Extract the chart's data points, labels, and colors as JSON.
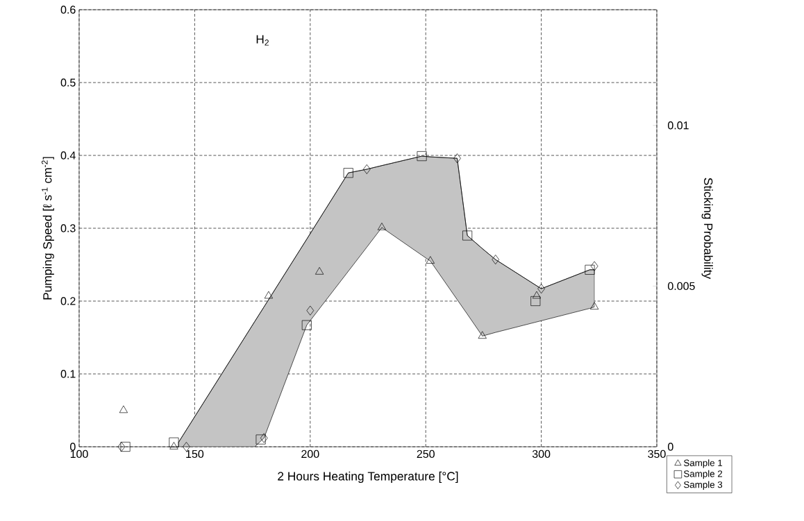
{
  "chart_data": {
    "type": "scatter",
    "xlabel": "2 Hours Heating Temperature [°C]",
    "ylabel": "Pumping Speed [ℓ s$^{-1}$ cm$^{-2}$]",
    "y2label": "Sticking Probability",
    "annotations": [
      "H$_{2}$"
    ],
    "xlim": [
      100,
      350
    ],
    "xticks": [
      100,
      150,
      200,
      250,
      300,
      350
    ],
    "ylim": [
      0,
      0.6
    ],
    "yticks": [
      0,
      0.1,
      0.2,
      0.3,
      0.4,
      0.5,
      0.6
    ],
    "y2lim": [
      0,
      0.0136
    ],
    "y2ticks": [
      0,
      0.005,
      0.01
    ],
    "grid": true,
    "legend": "bottom right",
    "series": [
      {
        "type": "line",
        "color": "#000000",
        "marker": "none",
        "x": [
          143,
          176,
          180,
          198.5,
          216.5,
          224.5,
          231,
          248.3,
          252,
          263.6,
          268,
          274.5,
          280.2,
          300,
          321,
          323
        ],
        "values": [
          0.006,
          0.172,
          0.192,
          0.285,
          0.376,
          0.381,
          0.386,
          0.399,
          0.398,
          0.396,
          0.29,
          0.272,
          0.257,
          0.217,
          0.243,
          0.243
        ],
        "upper": [
          0.006,
          0.172,
          0.192,
          0.285,
          0.376,
          0.381,
          0.386,
          0.399,
          0.398,
          0.396,
          0.29,
          0.272,
          0.257,
          0.217,
          0.243,
          0.243
        ],
        "lower": [
          0,
          0,
          0.012,
          0.167,
          0.241,
          0.274,
          0.301,
          0.263,
          0.255,
          0.202,
          0.182,
          0.152,
          0.157,
          0.173,
          0.19,
          0.192
        ]
      },
      {
        "name": "Sample 1",
        "color": "#000000",
        "marker": "triangle",
        "x": [
          119.2,
          141,
          182,
          204,
          231,
          252,
          274.5,
          298,
          323
        ],
        "values": [
          0.05,
          0,
          0.207,
          0.24,
          0.301,
          0.255,
          0.152,
          0.207,
          0.192
        ]
      },
      {
        "name": "Sample 2",
        "color": "#000000",
        "marker": "square",
        "x": [
          120,
          141,
          178.6,
          198.5,
          216.5,
          248.3,
          268,
          297.5,
          321
        ],
        "values": [
          0,
          0.006,
          0.01,
          0.167,
          0.376,
          0.399,
          0.29,
          0.2,
          0.243
        ]
      },
      {
        "name": "Sample 3",
        "color": "#000000",
        "marker": "diamond",
        "x": [
          118.3,
          146.4,
          180,
          200,
          224.5,
          263.6,
          280.2,
          300,
          323
        ],
        "values": [
          0,
          0,
          0.012,
          0.187,
          0.381,
          0.396,
          0.257,
          0.217,
          0.248
        ]
      }
    ]
  }
}
